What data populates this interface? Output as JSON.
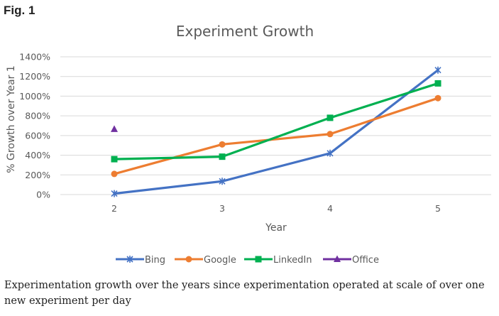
{
  "figure_label": "Fig. 1",
  "caption": "Experimentation growth over the years since experimentation operated at scale of over one new experiment per day",
  "chart_data": {
    "type": "line",
    "title": "Experiment Growth",
    "xlabel": "Year",
    "ylabel": "% Growth over Year 1",
    "categories": [
      2,
      3,
      4,
      5
    ],
    "ylim": [
      0,
      1400
    ],
    "yticks": [
      0,
      200,
      400,
      600,
      800,
      1000,
      1200,
      1400
    ],
    "ytick_labels": [
      "0%",
      "200%",
      "400%",
      "600%",
      "800%",
      "1000%",
      "1200%",
      "1400%"
    ],
    "grid": true,
    "legend_position": "bottom",
    "series": [
      {
        "name": "Bing",
        "color": "#4472C4",
        "marker": "asterisk",
        "values": [
          10,
          135,
          420,
          1265
        ]
      },
      {
        "name": "Google",
        "color": "#ED7D31",
        "marker": "circle",
        "values": [
          210,
          510,
          615,
          980
        ]
      },
      {
        "name": "LinkedIn",
        "color": "#00B050",
        "marker": "square",
        "values": [
          360,
          385,
          780,
          1130
        ]
      },
      {
        "name": "Office",
        "color": "#7030A0",
        "marker": "triangle",
        "values": [
          665,
          null,
          null,
          null
        ]
      }
    ]
  }
}
